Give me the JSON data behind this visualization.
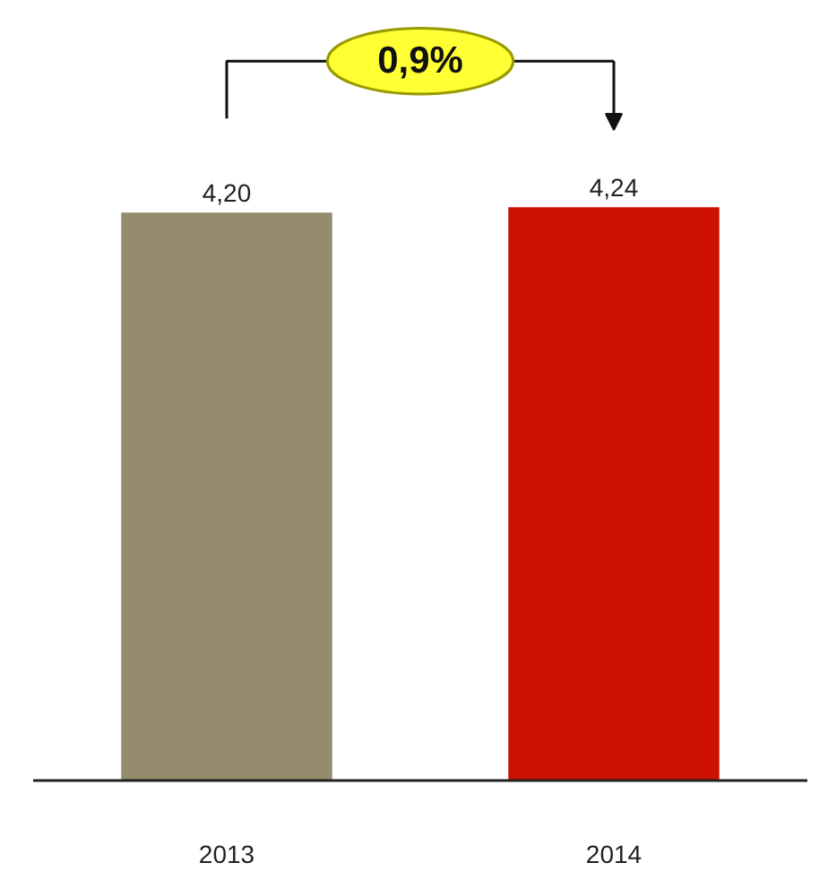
{
  "chart_data": {
    "type": "bar",
    "categories": [
      "2013",
      "2014"
    ],
    "values": [
      4.2,
      4.24
    ],
    "colors": [
      "#958a6c",
      "#cc1100"
    ],
    "value_labels": [
      "4,20",
      "4,24"
    ],
    "annotations": [
      "0,9%"
    ],
    "grid": false
  }
}
